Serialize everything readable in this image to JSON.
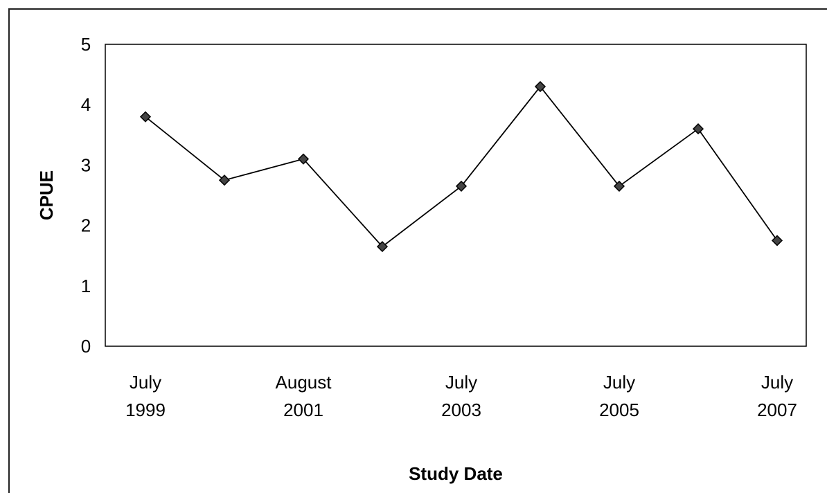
{
  "chart_data": {
    "type": "line",
    "title": "",
    "xlabel": "Study Date",
    "ylabel": "CPUE",
    "ylim": [
      0,
      5
    ],
    "yticks": [
      "0",
      "1",
      "2",
      "3",
      "4",
      "5"
    ],
    "x_tick_labels": [
      [
        "July",
        "1999"
      ],
      [
        "August",
        "2001"
      ],
      [
        "July",
        "2003"
      ],
      [
        "July",
        "2005"
      ],
      [
        "July",
        "2007"
      ]
    ],
    "categories": [
      "July 1999",
      "",
      "August 2001",
      "",
      "July 2003",
      "",
      "July 2005",
      "",
      "July 2007"
    ],
    "series": [
      {
        "values": [
          3.8,
          2.75,
          3.1,
          1.65,
          2.65,
          4.3,
          2.65,
          3.6,
          1.75
        ]
      }
    ],
    "grid": false,
    "legend": "none",
    "marker": "diamond",
    "colors": {
      "line": "#000000",
      "marker": "#444444",
      "plot_border": "#000000"
    }
  }
}
